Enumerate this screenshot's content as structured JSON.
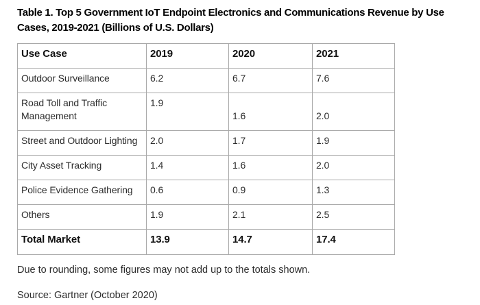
{
  "title": "Table 1. Top 5 Government IoT Endpoint Electronics and Communications Revenue by Use Cases, 2019-2021 (Billions of U.S. Dollars)",
  "table": {
    "columns": [
      "Use Case",
      "2019",
      "2020",
      "2021"
    ],
    "rows": [
      {
        "label": "Outdoor Surveillance",
        "values": [
          "6.2",
          "6.7",
          "7.6"
        ]
      },
      {
        "label": "Road Toll and Traffic Management",
        "values": [
          "1.9",
          "1.6",
          "2.0"
        ]
      },
      {
        "label": "Street and Outdoor Lighting",
        "values": [
          "2.0",
          "1.7",
          "1.9"
        ]
      },
      {
        "label": "City Asset Tracking",
        "values": [
          "1.4",
          "1.6",
          "2.0"
        ]
      },
      {
        "label": "Police Evidence Gathering",
        "values": [
          "0.6",
          "0.9",
          "1.3"
        ]
      },
      {
        "label": "Others",
        "values": [
          "1.9",
          "2.1",
          "2.5"
        ]
      }
    ],
    "total_row": {
      "label": "Total Market",
      "values": [
        "13.9",
        "14.7",
        "17.4"
      ]
    }
  },
  "footnote": "Due to rounding, some figures may not add up to the totals shown.",
  "source": "Source: Gartner (October 2020)"
}
